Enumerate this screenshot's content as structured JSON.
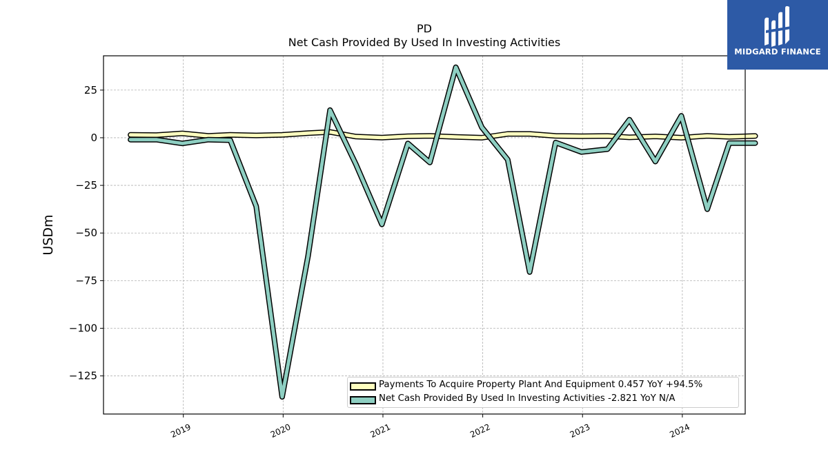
{
  "header": {
    "title_line1": "PD",
    "title_line2": "Net Cash Provided By Used In Investing Activities"
  },
  "brand": {
    "name": "MIDGARD FINANCE",
    "color": "#2d5aa6"
  },
  "chart_data": {
    "type": "line",
    "title": "PD\nNet Cash Provided By Used In Investing Activities",
    "ylabel": "USDm",
    "xlabel": "",
    "ylim": [
      -145,
      43
    ],
    "xlim": [
      2018.2,
      2024.63
    ],
    "grid": true,
    "legend_position": "lower-right",
    "x_ticks": [
      2019,
      2020,
      2021,
      2022,
      2023,
      2024
    ],
    "x_tick_labels": [
      "2019",
      "2020",
      "2021",
      "2022",
      "2023",
      "2024"
    ],
    "y_ticks": [
      25,
      0,
      -25,
      -50,
      -75,
      -100,
      -125
    ],
    "y_tick_labels": [
      "25",
      "0",
      "−25",
      "−50",
      "−75",
      "−100",
      "−125"
    ],
    "x": [
      2018.47,
      2018.73,
      2018.99,
      2019.25,
      2019.47,
      2019.73,
      2019.99,
      2020.25,
      2020.47,
      2020.73,
      2020.99,
      2021.25,
      2021.47,
      2021.73,
      2021.99,
      2022.25,
      2022.47,
      2022.73,
      2022.99,
      2023.25,
      2023.47,
      2023.73,
      2023.99,
      2024.25,
      2024.47,
      2024.73
    ],
    "series": [
      {
        "name": "Payments To Acquire Property Plant And Equipment",
        "legend_label": "Payments To Acquire Property Plant And Equipment  0.457 YoY +94.5%",
        "color": "#ffffbf",
        "values": [
          1.5,
          1.4,
          2.3,
          1.0,
          1.5,
          1.2,
          1.5,
          2.4,
          3.0,
          0.6,
          0.1,
          0.8,
          1.0,
          0.4,
          0.0,
          2.0,
          2.0,
          1.0,
          0.8,
          0.9,
          0.2,
          0.7,
          0.0,
          1.0,
          0.5,
          0.9
        ]
      },
      {
        "name": "Net Cash Provided By Used In Investing Activities",
        "legend_label": "Net Cash Provided By Used In Investing Activities  -2.821 YoY N/A",
        "color": "#8ecfc2",
        "values": [
          -1.0,
          -1.0,
          -3.0,
          -1.0,
          -1.3,
          -36.0,
          -136.0,
          -62.0,
          14.5,
          -14.0,
          -45.5,
          -3.0,
          -13.0,
          37.0,
          5.5,
          -11.5,
          -70.5,
          -2.5,
          -7.5,
          -6.0,
          9.5,
          -12.5,
          11.5,
          -37.5,
          -2.8,
          -2.8
        ]
      }
    ]
  }
}
